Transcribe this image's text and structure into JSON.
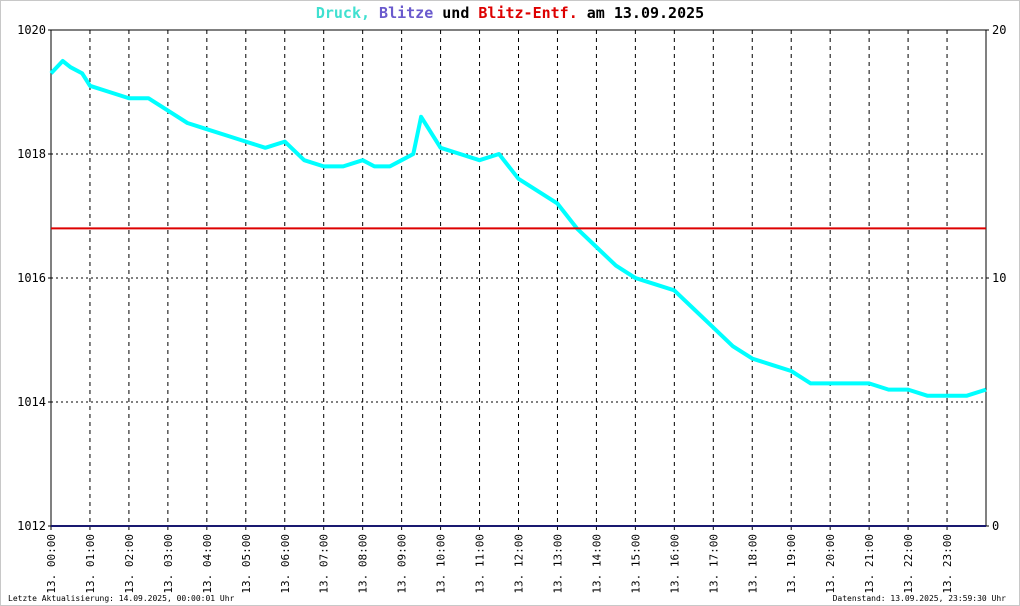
{
  "title": {
    "parts": [
      {
        "text": "Druck",
        "color": "#40e0d0"
      },
      {
        "text": ", ",
        "color": "#40e0d0"
      },
      {
        "text": "Blitze",
        "color": "#6a5acd"
      },
      {
        "text": " und ",
        "color": "#000000"
      },
      {
        "text": "Blitz-Entf.",
        "color": "#dd0000"
      },
      {
        "text": " am 13.09.2025",
        "color": "#000000"
      }
    ]
  },
  "footer": {
    "left": "Letzte Aktualisierung: 14.09.2025, 00:00:01 Uhr",
    "right": "Datenstand: 13.09.2025, 23:59:30 Uhr"
  },
  "colors": {
    "pressure": "#00ffff",
    "lightning_count": "#191970",
    "lightning_distance": "#dd0000",
    "grid": "#000000",
    "axis": "#000000"
  },
  "chart_data": {
    "type": "line",
    "x_range_hours": [
      0,
      24
    ],
    "x_tick_labels": [
      "13. 00:00",
      "13. 01:00",
      "13. 02:00",
      "13. 03:00",
      "13. 04:00",
      "13. 05:00",
      "13. 06:00",
      "13. 07:00",
      "13. 08:00",
      "13. 09:00",
      "13. 10:00",
      "13. 11:00",
      "13. 12:00",
      "13. 13:00",
      "13. 14:00",
      "13. 15:00",
      "13. 16:00",
      "13. 17:00",
      "13. 18:00",
      "13. 19:00",
      "13. 20:00",
      "13. 21:00",
      "13. 22:00",
      "13. 23:00"
    ],
    "y_left": {
      "range": [
        1012,
        1020
      ],
      "ticks": [
        "1012",
        "1014",
        "1016",
        "1018",
        "1020"
      ]
    },
    "y_right": {
      "range": [
        0,
        20
      ],
      "ticks": [
        {
          "value": 0,
          "label": "0",
          "color": "#000000"
        },
        {
          "value": 10,
          "label": "10",
          "color": "#dd0000"
        },
        {
          "value": 20,
          "label": "20",
          "color": "#000000"
        }
      ]
    },
    "grid": true,
    "series": [
      {
        "name": "Druck",
        "axis": "left",
        "x": [
          0,
          0.3,
          0.5,
          0.8,
          1.0,
          1.5,
          2.0,
          2.5,
          3.0,
          3.5,
          4.0,
          4.5,
          5.0,
          5.5,
          6.0,
          6.5,
          7.0,
          7.5,
          8.0,
          8.3,
          8.7,
          9.0,
          9.3,
          9.5,
          9.8,
          10.0,
          10.5,
          11.0,
          11.5,
          12.0,
          12.5,
          13.0,
          13.5,
          14.0,
          14.5,
          15.0,
          15.5,
          16.0,
          16.5,
          17.0,
          17.5,
          18.0,
          18.5,
          19.0,
          19.5,
          20.0,
          20.5,
          21.0,
          21.5,
          22.0,
          22.5,
          23.0,
          23.5,
          24.0
        ],
        "values": [
          1019.3,
          1019.5,
          1019.4,
          1019.3,
          1019.1,
          1019.0,
          1018.9,
          1018.9,
          1018.7,
          1018.5,
          1018.4,
          1018.3,
          1018.2,
          1018.1,
          1018.2,
          1017.9,
          1017.8,
          1017.8,
          1017.9,
          1017.8,
          1017.8,
          1017.9,
          1018.0,
          1018.6,
          1018.3,
          1018.1,
          1018.0,
          1017.9,
          1018.0,
          1017.6,
          1017.4,
          1017.2,
          1016.8,
          1016.5,
          1016.2,
          1016.0,
          1015.9,
          1015.8,
          1015.5,
          1015.2,
          1014.9,
          1014.7,
          1014.6,
          1014.5,
          1014.3,
          1014.3,
          1014.3,
          1014.3,
          1014.2,
          1014.2,
          1014.1,
          1014.1,
          1014.1,
          1014.2
        ]
      },
      {
        "name": "Blitze",
        "axis": "right",
        "x": [
          0,
          24
        ],
        "values": [
          0,
          0
        ]
      },
      {
        "name": "Blitz-Entf.",
        "axis": "right",
        "x": [
          0,
          24
        ],
        "values": [
          12,
          12
        ]
      }
    ]
  }
}
